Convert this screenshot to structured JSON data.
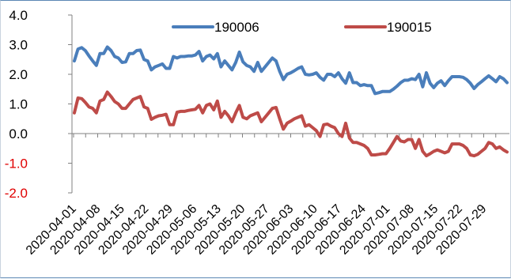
{
  "chart_data": {
    "type": "line",
    "title": "",
    "xlabel": "",
    "ylabel": "",
    "ylim": [
      -2.0,
      4.0
    ],
    "grid": false,
    "legend_position": "top",
    "y_ticks": [
      {
        "label": "4.0",
        "value": 4.0,
        "color": "#000000"
      },
      {
        "label": "3.0",
        "value": 3.0,
        "color": "#000000"
      },
      {
        "label": "2.0",
        "value": 2.0,
        "color": "#000000"
      },
      {
        "label": "1.0",
        "value": 1.0,
        "color": "#000000"
      },
      {
        "label": "0.0",
        "value": 0.0,
        "color": "#000000"
      },
      {
        "label": "-1.0",
        "value": -1.0,
        "color": "#e00000"
      },
      {
        "label": "-2.0",
        "value": -2.0,
        "color": "#e00000"
      }
    ],
    "x_tick_labels": [
      "2020-04-01",
      "2020-04-08",
      "2020-04-15",
      "2020-04-22",
      "2020-04-29",
      "2020-05-06",
      "2020-05-13",
      "2020-05-20",
      "2020-05-27",
      "2020-06-03",
      "2020-06-10",
      "2020-06-17",
      "2020-06-24",
      "2020-07-01",
      "2020-07-08",
      "2020-07-15",
      "2020-07-22",
      "2020-07-29"
    ],
    "series": [
      {
        "name": "190006",
        "color": "#4a7ebb",
        "values": [
          2.45,
          2.85,
          2.9,
          2.8,
          2.62,
          2.45,
          2.3,
          2.7,
          2.7,
          2.92,
          2.8,
          2.6,
          2.55,
          2.4,
          2.42,
          2.7,
          2.7,
          2.8,
          2.82,
          2.5,
          2.45,
          2.15,
          2.25,
          2.3,
          2.35,
          2.2,
          2.2,
          2.6,
          2.55,
          2.6,
          2.6,
          2.62,
          2.62,
          2.65,
          2.77,
          2.45,
          2.6,
          2.65,
          2.52,
          2.7,
          2.25,
          2.45,
          2.3,
          2.15,
          2.4,
          2.75,
          2.42,
          2.3,
          2.25,
          2.1,
          2.4,
          2.1,
          2.25,
          2.4,
          2.55,
          2.45,
          2.1,
          1.82,
          2.0,
          2.05,
          2.12,
          2.2,
          2.25,
          2.0,
          1.98,
          2.0,
          2.05,
          1.9,
          1.8,
          2.0,
          2.0,
          1.92,
          2.05,
          1.85,
          1.7,
          2.05,
          1.72,
          1.72,
          1.62,
          1.65,
          1.62,
          1.62,
          1.35,
          1.38,
          1.42,
          1.42,
          1.42,
          1.5,
          1.6,
          1.72,
          1.8,
          1.8,
          1.85,
          1.82,
          2.0,
          1.58,
          2.05,
          1.7,
          1.55,
          1.7,
          1.78,
          1.62,
          1.78,
          1.92,
          1.92,
          1.92,
          1.9,
          1.82,
          1.7,
          1.52,
          1.65,
          1.75,
          1.85,
          1.95,
          1.85,
          1.75,
          1.92,
          1.85,
          1.72
        ]
      },
      {
        "name": "190015",
        "color": "#be4b48",
        "values": [
          0.7,
          1.2,
          1.18,
          1.05,
          0.9,
          0.85,
          0.7,
          1.1,
          1.15,
          1.4,
          1.25,
          1.08,
          1.0,
          0.85,
          0.85,
          1.0,
          1.15,
          1.2,
          1.25,
          0.9,
          0.85,
          0.48,
          0.55,
          0.6,
          0.62,
          0.65,
          0.3,
          0.3,
          0.72,
          0.75,
          0.75,
          0.78,
          0.8,
          0.82,
          0.95,
          0.7,
          0.95,
          1.0,
          0.8,
          1.1,
          0.55,
          0.75,
          0.6,
          0.4,
          0.7,
          0.95,
          0.55,
          0.5,
          0.6,
          0.65,
          0.7,
          0.4,
          0.55,
          0.7,
          0.85,
          0.88,
          0.5,
          0.15,
          0.35,
          0.42,
          0.5,
          0.55,
          0.6,
          0.25,
          0.3,
          0.2,
          0.1,
          -0.1,
          0.3,
          0.32,
          0.25,
          0.2,
          0.0,
          -0.1,
          0.35,
          -0.15,
          -0.3,
          -0.3,
          -0.35,
          -0.4,
          -0.5,
          -0.72,
          -0.72,
          -0.7,
          -0.68,
          -0.68,
          -0.5,
          -0.3,
          -0.1,
          -0.25,
          -0.28,
          -0.2,
          -0.2,
          -0.5,
          -0.2,
          -0.6,
          -0.75,
          -0.68,
          -0.6,
          -0.55,
          -0.6,
          -0.65,
          -0.6,
          -0.35,
          -0.35,
          -0.35,
          -0.4,
          -0.5,
          -0.72,
          -0.75,
          -0.7,
          -0.6,
          -0.5,
          -0.3,
          -0.35,
          -0.5,
          -0.45,
          -0.55,
          -0.62
        ]
      }
    ]
  }
}
